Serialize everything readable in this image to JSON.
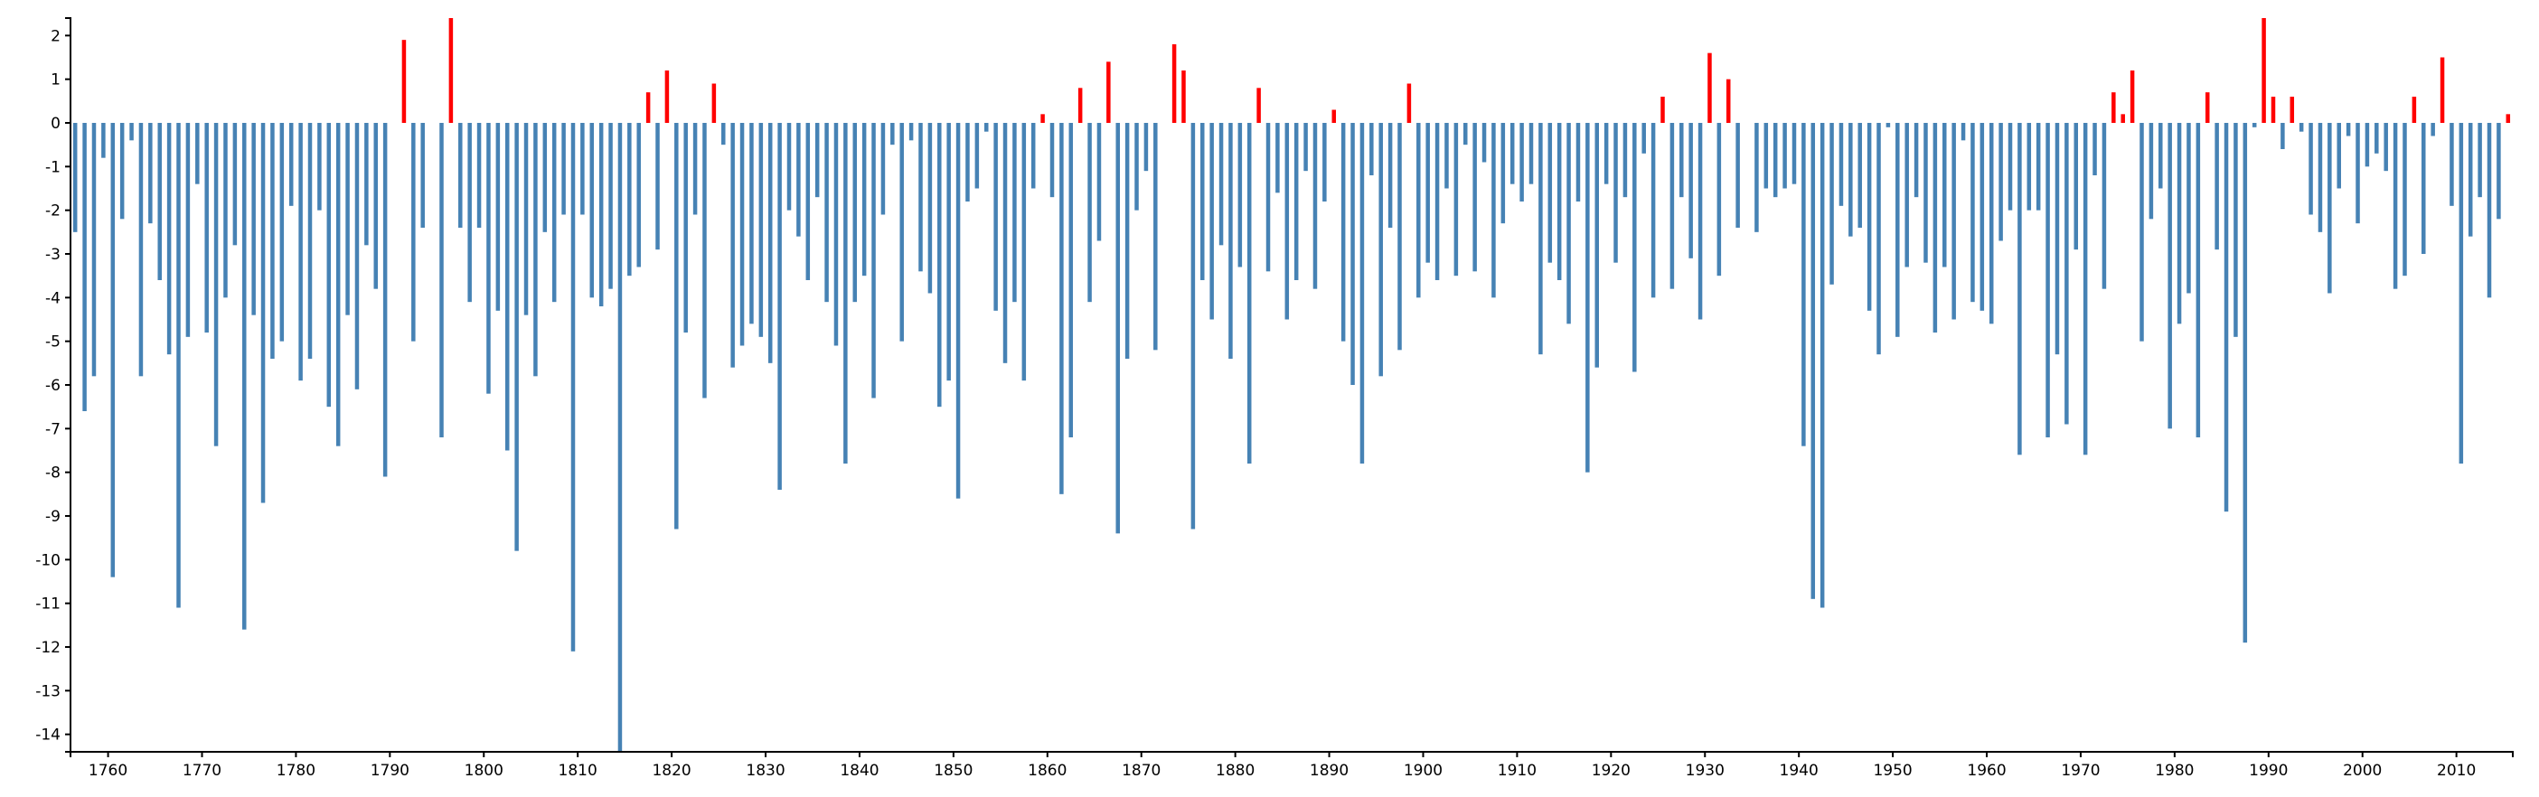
{
  "chart_data": {
    "type": "bar",
    "title": "",
    "xlabel": "",
    "ylabel": "",
    "xlim": [
      1756,
      2016
    ],
    "ylim": [
      -14.4,
      2.4
    ],
    "grid": false,
    "legend": "none",
    "colors": {
      "negative": "#4682b4",
      "positive": "#ff0000",
      "axis": "#000000"
    },
    "x_ticks": [
      1760,
      1770,
      1780,
      1790,
      1800,
      1810,
      1820,
      1830,
      1840,
      1850,
      1860,
      1870,
      1880,
      1890,
      1900,
      1910,
      1920,
      1930,
      1940,
      1950,
      1960,
      1970,
      1980,
      1990,
      2000,
      2010
    ],
    "y_ticks": [
      2,
      1,
      0,
      -1,
      -2,
      -3,
      -4,
      -5,
      -6,
      -7,
      -8,
      -9,
      -10,
      -11,
      -12,
      -13,
      -14
    ],
    "series": [
      {
        "x": [
          1756,
          1757,
          1758,
          1759,
          1760,
          1761,
          1762,
          1763,
          1764,
          1765,
          1766,
          1767,
          1768,
          1769,
          1770,
          1771,
          1772,
          1773,
          1774,
          1775,
          1776,
          1777,
          1778,
          1779,
          1780,
          1781,
          1782,
          1783,
          1784,
          1785,
          1786,
          1787,
          1788,
          1789,
          1790,
          1791,
          1792,
          1793,
          1794,
          1795,
          1796,
          1797,
          1798,
          1799,
          1800,
          1801,
          1802,
          1803,
          1804,
          1805,
          1806,
          1807,
          1808,
          1809,
          1810,
          1811,
          1812,
          1813,
          1814,
          1815,
          1816,
          1817,
          1818,
          1819,
          1820,
          1821,
          1822,
          1823,
          1824,
          1825,
          1826,
          1827,
          1828,
          1829,
          1830,
          1831,
          1832,
          1833,
          1834,
          1835,
          1836,
          1837,
          1838,
          1839,
          1840,
          1841,
          1842,
          1843,
          1844,
          1845,
          1846,
          1847,
          1848,
          1849,
          1850,
          1851,
          1852,
          1853,
          1854,
          1855,
          1856,
          1857,
          1858,
          1859,
          1860,
          1861,
          1862,
          1863,
          1864,
          1865,
          1866,
          1867,
          1868,
          1869,
          1870,
          1871,
          1872,
          1873,
          1874,
          1875,
          1876,
          1877,
          1878,
          1879,
          1880,
          1881,
          1882,
          1883,
          1884,
          1885,
          1886,
          1887,
          1888,
          1889,
          1890,
          1891,
          1892,
          1893,
          1894,
          1895,
          1896,
          1897,
          1898,
          1899,
          1900,
          1901,
          1902,
          1903,
          1904,
          1905,
          1906,
          1907,
          1908,
          1909,
          1910,
          1911,
          1912,
          1913,
          1914,
          1915,
          1916,
          1917,
          1918,
          1919,
          1920,
          1921,
          1922,
          1923,
          1924,
          1925,
          1926,
          1927,
          1928,
          1929,
          1930,
          1931,
          1932,
          1933,
          1934,
          1935,
          1936,
          1937,
          1938,
          1939,
          1940,
          1941,
          1942,
          1943,
          1944,
          1945,
          1946,
          1947,
          1948,
          1949,
          1950,
          1951,
          1952,
          1953,
          1954,
          1955,
          1956,
          1957,
          1958,
          1959,
          1960,
          1961,
          1962,
          1963,
          1964,
          1965,
          1966,
          1967,
          1968,
          1969,
          1970,
          1971,
          1972,
          1973,
          1974,
          1975,
          1976,
          1977,
          1978,
          1979,
          1980,
          1981,
          1982,
          1983,
          1984,
          1985,
          1986,
          1987,
          1988,
          1989,
          1990,
          1991,
          1992,
          1993,
          1994,
          1995,
          1996,
          1997,
          1998,
          1999,
          2000,
          2001,
          2002,
          2003,
          2004,
          2005,
          2006,
          2007,
          2008,
          2009,
          2010,
          2011,
          2012,
          2013,
          2014,
          2015
        ],
        "values": [
          -2.5,
          -6.6,
          -5.8,
          -0.8,
          -10.4,
          -2.2,
          -0.4,
          -5.8,
          -2.3,
          -3.6,
          -5.3,
          -11.1,
          -4.9,
          -1.4,
          -4.8,
          -7.4,
          -4.0,
          -2.8,
          -11.6,
          -4.4,
          -8.7,
          -5.4,
          -5.0,
          -1.9,
          -5.9,
          -5.4,
          -2.0,
          -6.5,
          -7.4,
          -4.4,
          -6.1,
          -2.8,
          -3.8,
          -8.1,
          0.0,
          1.9,
          -5.0,
          -2.4,
          0.0,
          -7.2,
          2.4,
          -2.4,
          -4.1,
          -2.4,
          -6.2,
          -4.3,
          -7.5,
          -9.8,
          -4.4,
          -5.8,
          -2.5,
          -4.1,
          -2.1,
          -12.1,
          -2.1,
          -4.0,
          -4.2,
          -3.8,
          -14.4,
          -3.5,
          -3.3,
          0.7,
          -2.9,
          1.2,
          -9.3,
          -4.8,
          -2.1,
          -6.3,
          0.9,
          -0.5,
          -5.6,
          -5.1,
          -4.6,
          -4.9,
          -5.5,
          -8.4,
          -2.0,
          -2.6,
          -3.6,
          -1.7,
          -4.1,
          -5.1,
          -7.8,
          -4.1,
          -3.5,
          -6.3,
          -2.1,
          -0.5,
          -5.0,
          -0.4,
          -3.4,
          -3.9,
          -6.5,
          -5.9,
          -8.6,
          -1.8,
          -1.5,
          -0.2,
          -4.3,
          -5.5,
          -4.1,
          -5.9,
          -1.5,
          0.2,
          -1.7,
          -8.5,
          -7.2,
          0.8,
          -4.1,
          -2.7,
          1.4,
          -9.4,
          -5.4,
          -2.0,
          -1.1,
          -5.2,
          0.0,
          1.8,
          1.2,
          -9.3,
          -3.6,
          -4.5,
          -2.8,
          -5.4,
          -3.3,
          -7.8,
          0.8,
          -3.4,
          -1.6,
          -4.5,
          -3.6,
          -1.1,
          -3.8,
          -1.8,
          0.3,
          -5.0,
          -6.0,
          -7.8,
          -1.2,
          -5.8,
          -2.4,
          -5.2,
          0.9,
          -4.0,
          -3.2,
          -3.6,
          -1.5,
          -3.5,
          -0.5,
          -3.4,
          -0.9,
          -4.0,
          -2.3,
          -1.4,
          -1.8,
          -1.4,
          -5.3,
          -3.2,
          -3.6,
          -4.6,
          -1.8,
          -8.0,
          -5.6,
          -1.4,
          -3.2,
          -1.7,
          -5.7,
          -0.7,
          -4.0,
          0.6,
          -3.8,
          -1.7,
          -3.1,
          -4.5,
          1.6,
          -3.5,
          1.0,
          -2.4,
          0.0,
          -2.5,
          -1.5,
          -1.7,
          -1.5,
          -1.4,
          -7.4,
          -10.9,
          -11.1,
          -3.7,
          -1.9,
          -2.6,
          -2.4,
          -4.3,
          -5.3,
          -0.1,
          -4.9,
          -3.3,
          -1.7,
          -3.2,
          -4.8,
          -3.3,
          -4.5,
          -0.4,
          -4.1,
          -4.3,
          -4.6,
          -2.7,
          -2.0,
          -7.6,
          -2.0,
          -2.0,
          -7.2,
          -5.3,
          -6.9,
          -2.9,
          -7.6,
          -1.2,
          -3.8,
          0.7,
          0.2,
          1.2,
          -5.0,
          -2.2,
          -1.5,
          -7.0,
          -4.6,
          -3.9,
          -7.2,
          0.7,
          -2.9,
          -8.9,
          -4.9,
          -11.9,
          -0.1,
          2.4,
          0.6,
          -0.6,
          0.6,
          -0.2,
          -2.1,
          -2.5,
          -3.9,
          -1.5,
          -0.3,
          -2.3,
          -1.0,
          -0.7,
          -1.1,
          -3.8,
          -3.5,
          0.6,
          -3.0,
          -0.3,
          1.5,
          -1.9,
          -7.8,
          -2.6,
          -1.7,
          -4.0,
          -2.2,
          0.2
        ]
      }
    ]
  }
}
